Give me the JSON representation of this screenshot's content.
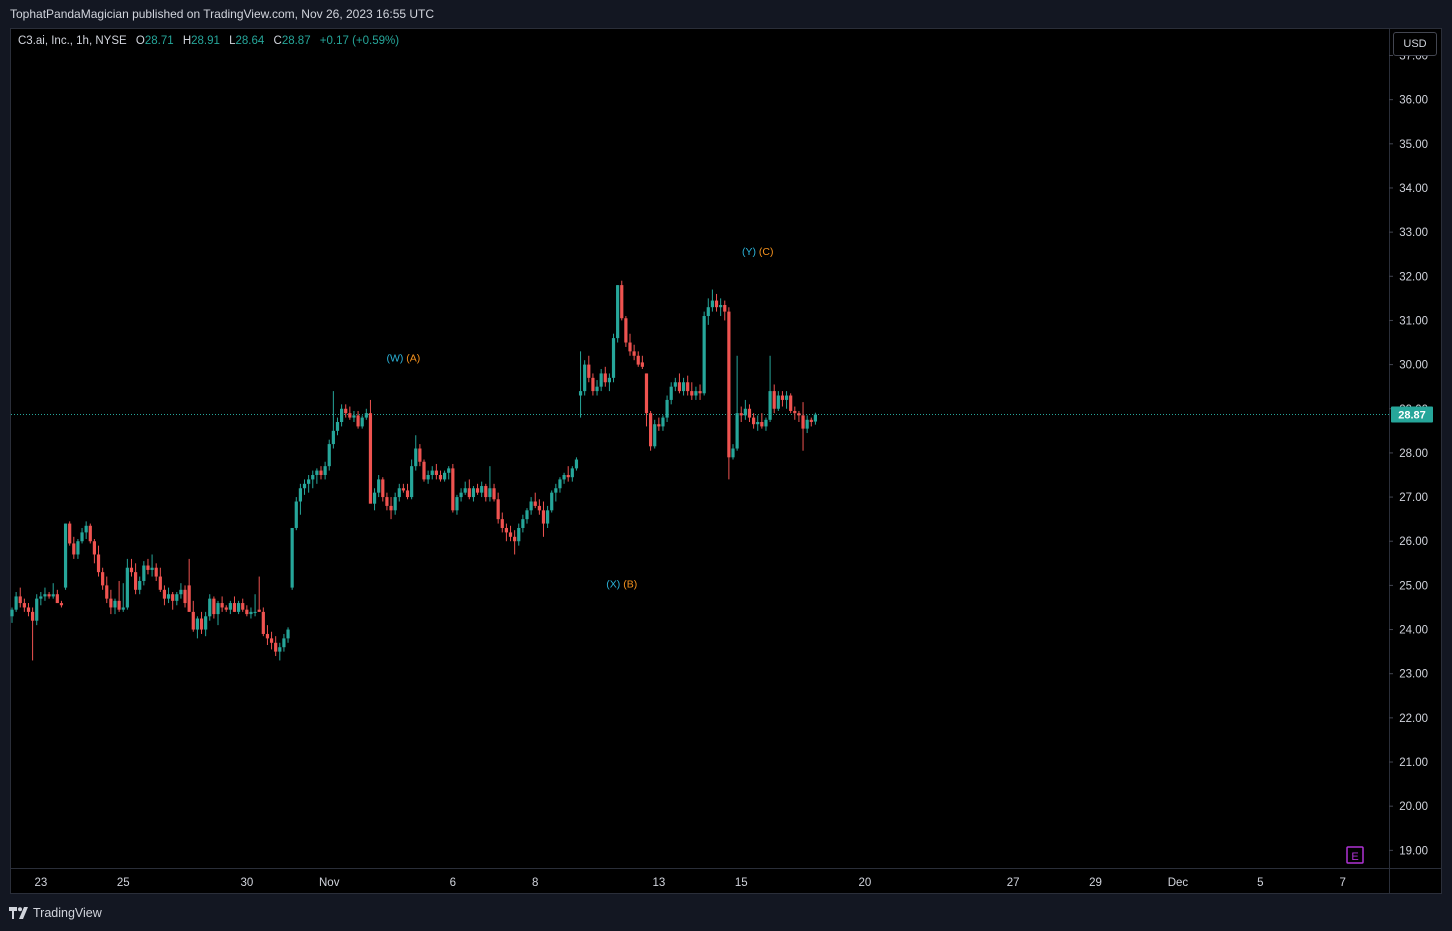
{
  "header": {
    "published_by": "TophatPandaMagician published on TradingView.com, Nov 26, 2023 16:55 UTC"
  },
  "legend": {
    "symbol": "C3.ai, Inc., 1h, NYSE",
    "o_label": "O",
    "o_value": "28.71",
    "h_label": "H",
    "h_value": "28.91",
    "l_label": "L",
    "l_value": "28.64",
    "c_label": "C",
    "c_value": "28.87",
    "change": "+0.17 (+0.59%)"
  },
  "price_axis": {
    "currency_button": "USD",
    "current_price_label": "28.87"
  },
  "earnings_marker": {
    "label": "E"
  },
  "footer": {
    "logo_text": "TradingView"
  },
  "colors": {
    "up": "#26a69a",
    "down": "#ef5350",
    "background": "#000000",
    "wave_cyan": "#2bb3d9",
    "wave_orange": "#f7931e",
    "earnings": "#b033d6"
  },
  "chart_data": {
    "type": "candlestick",
    "ylim": [
      18.6,
      37.6
    ],
    "yticks": [
      19,
      20,
      21,
      22,
      23,
      24,
      25,
      26,
      27,
      28,
      29,
      30,
      31,
      32,
      33,
      34,
      35,
      36,
      37
    ],
    "ytick_labels": [
      "19.00",
      "20.00",
      "21.00",
      "22.00",
      "23.00",
      "24.00",
      "25.00",
      "26.00",
      "27.00",
      "28.00",
      "29.00",
      "30.00",
      "31.00",
      "32.00",
      "33.00",
      "34.00",
      "35.00",
      "36.00",
      "37.00"
    ],
    "xticks": [
      {
        "label": "23",
        "bar": 7
      },
      {
        "label": "25",
        "bar": 27
      },
      {
        "label": "30",
        "bar": 57
      },
      {
        "label": "Nov",
        "bar": 77
      },
      {
        "label": "6",
        "bar": 107
      },
      {
        "label": "8",
        "bar": 127
      },
      {
        "label": "13",
        "bar": 157
      },
      {
        "label": "15",
        "bar": 177
      },
      {
        "label": "20",
        "bar": 207
      },
      {
        "label": "27",
        "bar": 243
      },
      {
        "label": "29",
        "bar": 263
      },
      {
        "label": "Dec",
        "bar": 283
      },
      {
        "label": "5",
        "bar": 303
      },
      {
        "label": "7",
        "bar": 323
      }
    ],
    "last_price": 28.87,
    "candles": [
      [
        24.3,
        24.5,
        24.15,
        24.45
      ],
      [
        24.45,
        24.85,
        24.4,
        24.75
      ],
      [
        24.75,
        24.95,
        24.5,
        24.6
      ],
      [
        24.6,
        24.7,
        24.4,
        24.5
      ],
      [
        24.5,
        24.6,
        24.3,
        24.4
      ],
      [
        24.4,
        24.5,
        23.3,
        24.2
      ],
      [
        24.2,
        24.8,
        24.1,
        24.7
      ],
      [
        24.7,
        24.85,
        24.55,
        24.75
      ],
      [
        24.75,
        24.95,
        24.65,
        24.8
      ],
      [
        24.8,
        24.85,
        24.7,
        24.75
      ],
      [
        24.75,
        25.05,
        24.7,
        24.8
      ],
      [
        24.8,
        24.9,
        24.6,
        24.6
      ],
      [
        24.6,
        24.65,
        24.5,
        24.55
      ],
      [
        24.95,
        26.4,
        24.9,
        26.4
      ],
      [
        26.4,
        26.45,
        25.9,
        25.95
      ],
      [
        25.95,
        26.1,
        25.6,
        25.7
      ],
      [
        25.7,
        26.05,
        25.6,
        26.0
      ],
      [
        26.0,
        26.3,
        25.95,
        26.2
      ],
      [
        26.2,
        26.45,
        26.05,
        26.35
      ],
      [
        26.35,
        26.4,
        25.95,
        26.0
      ],
      [
        26.0,
        26.05,
        25.5,
        25.7
      ],
      [
        25.7,
        25.9,
        25.2,
        25.3
      ],
      [
        25.3,
        25.4,
        24.9,
        25.0
      ],
      [
        25.0,
        25.2,
        24.6,
        24.7
      ],
      [
        24.7,
        24.9,
        24.35,
        24.5
      ],
      [
        24.5,
        24.7,
        24.35,
        24.65
      ],
      [
        24.65,
        25.1,
        24.4,
        24.45
      ],
      [
        24.45,
        25.05,
        24.4,
        24.5
      ],
      [
        24.5,
        25.6,
        24.45,
        25.4
      ],
      [
        25.4,
        25.6,
        25.2,
        25.3
      ],
      [
        25.3,
        25.5,
        24.8,
        24.9
      ],
      [
        24.9,
        25.2,
        24.8,
        25.1
      ],
      [
        25.1,
        25.55,
        25.0,
        25.45
      ],
      [
        25.45,
        25.6,
        25.25,
        25.35
      ],
      [
        25.35,
        25.7,
        25.2,
        25.4
      ],
      [
        25.4,
        25.5,
        25.1,
        25.2
      ],
      [
        25.2,
        25.4,
        24.85,
        24.9
      ],
      [
        24.9,
        25.0,
        24.55,
        24.7
      ],
      [
        24.7,
        24.95,
        24.6,
        24.8
      ],
      [
        24.8,
        24.85,
        24.45,
        24.65
      ],
      [
        24.65,
        24.85,
        24.55,
        24.8
      ],
      [
        24.8,
        25.05,
        24.7,
        24.9
      ],
      [
        24.9,
        25.0,
        24.5,
        24.6
      ],
      [
        25.0,
        25.6,
        24.4,
        24.4
      ],
      [
        24.4,
        24.65,
        23.95,
        24.0
      ],
      [
        24.0,
        24.3,
        23.8,
        24.25
      ],
      [
        24.25,
        24.4,
        23.9,
        24.0
      ],
      [
        24.0,
        24.4,
        23.85,
        24.3
      ],
      [
        24.3,
        24.8,
        24.2,
        24.7
      ],
      [
        24.7,
        24.75,
        24.25,
        24.35
      ],
      [
        24.35,
        24.65,
        24.1,
        24.6
      ],
      [
        24.6,
        24.75,
        24.4,
        24.5
      ],
      [
        24.5,
        24.55,
        24.4,
        24.45
      ],
      [
        24.45,
        24.65,
        24.35,
        24.6
      ],
      [
        24.6,
        24.75,
        24.4,
        24.4
      ],
      [
        24.4,
        24.65,
        24.35,
        24.6
      ],
      [
        24.6,
        24.7,
        24.4,
        24.45
      ],
      [
        24.45,
        24.55,
        24.3,
        24.35
      ],
      [
        24.35,
        24.5,
        24.25,
        24.4
      ],
      [
        24.4,
        24.8,
        24.3,
        24.4
      ],
      [
        24.45,
        25.2,
        24.4,
        24.4
      ],
      [
        24.4,
        24.5,
        23.85,
        23.9
      ],
      [
        23.9,
        24.1,
        23.65,
        23.8
      ],
      [
        23.8,
        23.95,
        23.55,
        23.7
      ],
      [
        23.7,
        23.85,
        23.4,
        23.5
      ],
      [
        23.5,
        23.7,
        23.3,
        23.6
      ],
      [
        23.6,
        23.9,
        23.5,
        23.8
      ],
      [
        23.8,
        24.05,
        23.7,
        24.0
      ],
      [
        24.95,
        26.3,
        24.9,
        26.3
      ],
      [
        26.3,
        27.0,
        26.25,
        26.9
      ],
      [
        26.9,
        27.3,
        26.6,
        27.2
      ],
      [
        27.2,
        27.4,
        27.05,
        27.3
      ],
      [
        27.3,
        27.5,
        27.1,
        27.4
      ],
      [
        27.4,
        27.6,
        27.2,
        27.5
      ],
      [
        27.5,
        27.65,
        27.3,
        27.6
      ],
      [
        27.6,
        27.7,
        27.4,
        27.5
      ],
      [
        27.5,
        27.8,
        27.4,
        27.7
      ],
      [
        27.7,
        28.3,
        27.6,
        28.2
      ],
      [
        28.2,
        29.4,
        28.1,
        28.5
      ],
      [
        28.5,
        28.8,
        28.4,
        28.7
      ],
      [
        28.7,
        29.1,
        28.6,
        29.0
      ],
      [
        29.0,
        29.1,
        28.8,
        28.9
      ],
      [
        28.9,
        29.05,
        28.75,
        28.8
      ],
      [
        28.8,
        28.95,
        28.7,
        28.85
      ],
      [
        28.85,
        28.95,
        28.55,
        28.6
      ],
      [
        28.6,
        28.85,
        28.55,
        28.8
      ],
      [
        28.8,
        29.0,
        28.75,
        28.9
      ],
      [
        28.9,
        29.2,
        27.0,
        26.85
      ],
      [
        26.85,
        27.2,
        26.7,
        27.1
      ],
      [
        27.1,
        27.5,
        27.0,
        27.4
      ],
      [
        27.4,
        27.45,
        26.9,
        27.0
      ],
      [
        27.0,
        27.1,
        26.7,
        26.8
      ],
      [
        26.8,
        27.0,
        26.5,
        26.7
      ],
      [
        26.7,
        27.1,
        26.6,
        27.0
      ],
      [
        27.0,
        27.3,
        26.9,
        27.2
      ],
      [
        27.2,
        27.3,
        27.1,
        27.15
      ],
      [
        27.15,
        27.3,
        26.95,
        27.0
      ],
      [
        27.0,
        27.85,
        26.95,
        27.7
      ],
      [
        27.7,
        28.4,
        27.6,
        28.1
      ],
      [
        28.1,
        28.2,
        27.7,
        27.8
      ],
      [
        27.8,
        27.85,
        27.35,
        27.4
      ],
      [
        27.4,
        27.6,
        27.3,
        27.5
      ],
      [
        27.5,
        27.7,
        27.4,
        27.6
      ],
      [
        27.6,
        27.75,
        27.4,
        27.5
      ],
      [
        27.5,
        27.6,
        27.35,
        27.4
      ],
      [
        27.4,
        27.6,
        27.35,
        27.55
      ],
      [
        27.55,
        27.7,
        27.4,
        27.65
      ],
      [
        27.65,
        27.75,
        26.65,
        26.7
      ],
      [
        26.7,
        27.05,
        26.6,
        27.0
      ],
      [
        27.0,
        27.2,
        26.9,
        27.1
      ],
      [
        27.1,
        27.35,
        27.05,
        27.2
      ],
      [
        27.2,
        27.4,
        26.95,
        27.0
      ],
      [
        27.0,
        27.25,
        26.9,
        27.2
      ],
      [
        27.2,
        27.3,
        27.05,
        27.1
      ],
      [
        27.1,
        27.35,
        27.0,
        27.25
      ],
      [
        27.25,
        27.3,
        26.9,
        27.0
      ],
      [
        27.0,
        27.7,
        26.9,
        27.2
      ],
      [
        27.2,
        27.3,
        26.9,
        26.95
      ],
      [
        26.95,
        27.1,
        26.4,
        26.5
      ],
      [
        26.5,
        26.65,
        26.2,
        26.3
      ],
      [
        26.3,
        26.4,
        26.0,
        26.2
      ],
      [
        26.2,
        26.35,
        26.0,
        26.1
      ],
      [
        26.1,
        26.25,
        25.7,
        26.0
      ],
      [
        26.0,
        26.4,
        25.9,
        26.3
      ],
      [
        26.3,
        26.6,
        26.2,
        26.5
      ],
      [
        26.5,
        26.75,
        26.4,
        26.7
      ],
      [
        26.7,
        27.0,
        26.6,
        26.9
      ],
      [
        26.9,
        27.1,
        26.75,
        26.8
      ],
      [
        26.8,
        26.95,
        26.6,
        26.7
      ],
      [
        26.7,
        26.9,
        26.1,
        26.4
      ],
      [
        26.4,
        26.8,
        26.3,
        26.7
      ],
      [
        26.7,
        27.15,
        26.65,
        27.1
      ],
      [
        27.1,
        27.3,
        26.9,
        27.2
      ],
      [
        27.2,
        27.45,
        27.1,
        27.4
      ],
      [
        27.4,
        27.55,
        27.3,
        27.5
      ],
      [
        27.5,
        27.7,
        27.35,
        27.45
      ],
      [
        27.45,
        27.7,
        27.35,
        27.65
      ],
      [
        27.65,
        27.9,
        27.6,
        27.85
      ],
      [
        29.3,
        30.3,
        28.8,
        29.4
      ],
      [
        29.4,
        30.1,
        29.3,
        30.0
      ],
      [
        30.0,
        30.2,
        29.6,
        29.7
      ],
      [
        29.7,
        29.8,
        29.3,
        29.4
      ],
      [
        29.4,
        29.65,
        29.3,
        29.5
      ],
      [
        29.5,
        29.9,
        29.4,
        29.8
      ],
      [
        29.8,
        29.95,
        29.5,
        29.6
      ],
      [
        29.6,
        29.8,
        29.4,
        29.7
      ],
      [
        29.7,
        30.7,
        29.6,
        30.6
      ],
      [
        30.6,
        31.8,
        30.5,
        31.8
      ],
      [
        31.8,
        31.9,
        31.0,
        31.05
      ],
      [
        31.05,
        31.1,
        30.4,
        30.5
      ],
      [
        30.5,
        30.7,
        30.2,
        30.3
      ],
      [
        30.3,
        30.45,
        30.1,
        30.2
      ],
      [
        30.2,
        30.3,
        29.95,
        30.0
      ],
      [
        30.05,
        30.2,
        29.9,
        29.95
      ],
      [
        29.8,
        29.8,
        28.6,
        28.9
      ],
      [
        28.9,
        28.95,
        28.05,
        28.15
      ],
      [
        28.15,
        28.75,
        28.1,
        28.65
      ],
      [
        28.65,
        28.8,
        28.5,
        28.6
      ],
      [
        28.6,
        28.85,
        28.5,
        28.8
      ],
      [
        28.8,
        29.3,
        28.7,
        29.2
      ],
      [
        29.2,
        29.6,
        29.1,
        29.5
      ],
      [
        29.5,
        29.7,
        29.4,
        29.6
      ],
      [
        29.6,
        29.8,
        29.35,
        29.4
      ],
      [
        29.4,
        29.7,
        29.3,
        29.6
      ],
      [
        29.6,
        29.75,
        29.3,
        29.4
      ],
      [
        29.4,
        29.6,
        29.2,
        29.3
      ],
      [
        29.3,
        29.5,
        29.2,
        29.4
      ],
      [
        29.4,
        29.55,
        29.2,
        29.35
      ],
      [
        29.35,
        31.2,
        29.3,
        31.1
      ],
      [
        31.1,
        31.5,
        30.9,
        31.3
      ],
      [
        31.3,
        31.7,
        31.2,
        31.45
      ],
      [
        31.45,
        31.6,
        31.2,
        31.3
      ],
      [
        31.3,
        31.5,
        31.1,
        31.35
      ],
      [
        31.35,
        31.45,
        31.0,
        31.2
      ],
      [
        31.2,
        31.3,
        27.4,
        27.9
      ],
      [
        27.9,
        28.2,
        27.85,
        28.1
      ],
      [
        28.1,
        30.2,
        28.05,
        28.9
      ],
      [
        28.9,
        29.05,
        28.7,
        28.85
      ],
      [
        28.85,
        29.2,
        28.75,
        29.0
      ],
      [
        29.0,
        29.1,
        28.7,
        28.8
      ],
      [
        28.8,
        28.9,
        28.55,
        28.65
      ],
      [
        28.65,
        28.85,
        28.5,
        28.7
      ],
      [
        28.7,
        28.9,
        28.55,
        28.6
      ],
      [
        28.6,
        28.8,
        28.5,
        28.75
      ],
      [
        28.75,
        30.2,
        28.7,
        29.4
      ],
      [
        29.4,
        29.55,
        28.9,
        29.0
      ],
      [
        29.0,
        29.4,
        28.95,
        29.3
      ],
      [
        29.3,
        29.4,
        29.05,
        29.2
      ],
      [
        29.2,
        29.4,
        29.0,
        29.3
      ],
      [
        29.3,
        29.35,
        28.9,
        28.95
      ],
      [
        28.95,
        29.05,
        28.75,
        28.9
      ],
      [
        28.9,
        28.95,
        28.7,
        28.85
      ],
      [
        28.85,
        29.15,
        28.05,
        28.55
      ],
      [
        28.55,
        28.85,
        28.45,
        28.75
      ],
      [
        28.75,
        28.8,
        28.6,
        28.7
      ],
      [
        28.71,
        28.91,
        28.64,
        28.87
      ]
    ],
    "annotations": [
      {
        "bar": 95,
        "price": 30.07,
        "parts": [
          {
            "text": "(W)",
            "color": "wave_cyan"
          },
          {
            "text": "(A)",
            "color": "wave_orange"
          }
        ]
      },
      {
        "bar": 148,
        "price": 24.95,
        "parts": [
          {
            "text": "(X)",
            "color": "wave_cyan"
          },
          {
            "text": "(B)",
            "color": "wave_orange"
          }
        ]
      },
      {
        "bar": 181,
        "price": 32.48,
        "parts": [
          {
            "text": "(Y)",
            "color": "wave_cyan"
          },
          {
            "text": "(C)",
            "color": "wave_orange"
          }
        ]
      }
    ]
  }
}
